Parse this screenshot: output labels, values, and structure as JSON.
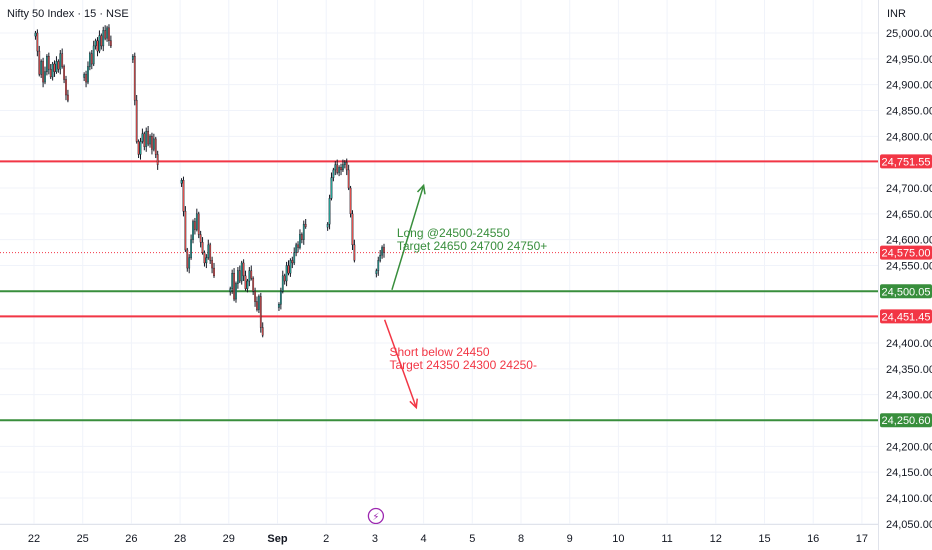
{
  "header": {
    "title": "Nifty 50 Index · 15 · NSE",
    "currency": "INR"
  },
  "colors": {
    "up": "#26a69a",
    "down": "#ef5350",
    "wick": "#131722",
    "resistance": "#f23645",
    "support": "#388e3c",
    "last_price": "#f23645",
    "grid": "#f0f3fa",
    "marker": "#9c27b0"
  },
  "chart_data": {
    "type": "candlestick",
    "title": "Nifty 50 Index · 15 · NSE",
    "xlabel": "",
    "ylabel": "INR",
    "ylim": [
      24030,
      25030
    ],
    "y_ticks": [
      25000,
      24950,
      24900,
      24850,
      24800,
      24750,
      24700,
      24650,
      24600,
      24550,
      24500,
      24450,
      24400,
      24350,
      24300,
      24250,
      24200,
      24150,
      24100,
      24050
    ],
    "y_tick_labels": [
      "25,000.00",
      "24,950.00",
      "24,900.00",
      "24,850.00",
      "24,800.00",
      "24,750.00",
      "24,700.00",
      "24,650.00",
      "24,600.00",
      "24,550.00",
      "24,500.00",
      "24,450.00",
      "24,400.00",
      "24,350.00",
      "24,300.00",
      "24,250.00",
      "24,200.00",
      "24,150.00",
      "24,100.00",
      "24,050.00"
    ],
    "x_ticks": [
      {
        "label": "22",
        "session": 0
      },
      {
        "label": "25",
        "session": 1
      },
      {
        "label": "26",
        "session": 2
      },
      {
        "label": "28",
        "session": 3
      },
      {
        "label": "29",
        "session": 4
      },
      {
        "label": "Sep",
        "session": 5
      },
      {
        "label": "2",
        "session": 6
      },
      {
        "label": "3",
        "session": 7
      },
      {
        "label": "4",
        "session": 8
      },
      {
        "label": "5",
        "session": 9
      },
      {
        "label": "8",
        "session": 10
      },
      {
        "label": "9",
        "session": 11
      },
      {
        "label": "10",
        "session": 12
      },
      {
        "label": "11",
        "session": 13
      },
      {
        "label": "12",
        "session": 14
      },
      {
        "label": "15",
        "session": 15
      },
      {
        "label": "16",
        "session": 16
      },
      {
        "label": "17",
        "session": 17
      }
    ],
    "bars_per_session": 25,
    "candles": [
      {
        "session": 0,
        "closes": [
          25000,
          24965,
          24920,
          24945,
          24905,
          24925,
          24955,
          24930,
          24915,
          24940,
          24925,
          24945,
          24930,
          24960,
          24935,
          24910,
          24880,
          24870
        ]
      },
      {
        "session": 1,
        "closes": [
          24920,
          24905,
          24935,
          24960,
          24940,
          24975,
          24985,
          24965,
          24995,
          24975,
          25005,
          24990,
          25010,
          24985,
          24975
        ]
      },
      {
        "session": 2,
        "closes": [
          24955,
          24870,
          24790,
          24765,
          24790,
          24805,
          24780,
          24810,
          24785,
          24800,
          24775,
          24795,
          24765,
          24745
        ]
      },
      {
        "session": 3,
        "closes": [
          24715,
          24655,
          24580,
          24545,
          24565,
          24600,
          24635,
          24620,
          24650,
          24610,
          24595,
          24575,
          24555,
          24565,
          24590,
          24560,
          24545,
          24530
        ]
      },
      {
        "session": 4,
        "closes": [
          24505,
          24535,
          24485,
          24515,
          24540,
          24520,
          24555,
          24530,
          24505,
          24520,
          24540,
          24525,
          24500,
          24480,
          24465,
          24490,
          24430,
          24415
        ]
      },
      {
        "session": 5,
        "closes": [
          24475,
          24500,
          24530,
          24520,
          24550,
          24535,
          24560,
          24555,
          24575,
          24590,
          24585,
          24610,
          24600,
          24630,
          24625
        ]
      },
      {
        "session": 6,
        "closes": [
          24630,
          24680,
          24720,
          24735,
          24745,
          24730,
          24740,
          24735,
          24745,
          24750,
          24735,
          24700,
          24650,
          24590,
          24560
        ]
      },
      {
        "session": 7,
        "closes": [
          24540,
          24560,
          24570,
          24585,
          24575
        ]
      }
    ],
    "levels": [
      {
        "name": "resistance-24751",
        "value": 24751.55,
        "label": "24,751.55",
        "role": "resistance"
      },
      {
        "name": "support-24500",
        "value": 24500.05,
        "label": "24,500.05",
        "role": "support"
      },
      {
        "name": "resistance-24451",
        "value": 24451.45,
        "label": "24,451.45",
        "role": "resistance"
      },
      {
        "name": "support-24250",
        "value": 24250.6,
        "label": "24,250.60",
        "role": "support"
      }
    ],
    "last_price": {
      "value": 24575.0,
      "label": "24,575.00"
    },
    "annotations": [
      {
        "name": "long-setup",
        "lines": [
          "Long @24500-24550",
          "Target 24650 24700 24750+"
        ],
        "color": "#388e3c",
        "arrow": {
          "from": [
            7.35,
            24503
          ],
          "to": [
            8.0,
            24705
          ]
        },
        "text_at": [
          7.45,
          24605
        ]
      },
      {
        "name": "short-setup",
        "lines": [
          "Short below 24450",
          "Target 24350 24300 24250-"
        ],
        "color": "#f23645",
        "arrow": {
          "from": [
            7.2,
            24445
          ],
          "to": [
            7.85,
            24275
          ]
        },
        "text_at": [
          7.3,
          24375
        ]
      }
    ],
    "event_marker": {
      "session": 7,
      "symbol": "⚡"
    }
  }
}
